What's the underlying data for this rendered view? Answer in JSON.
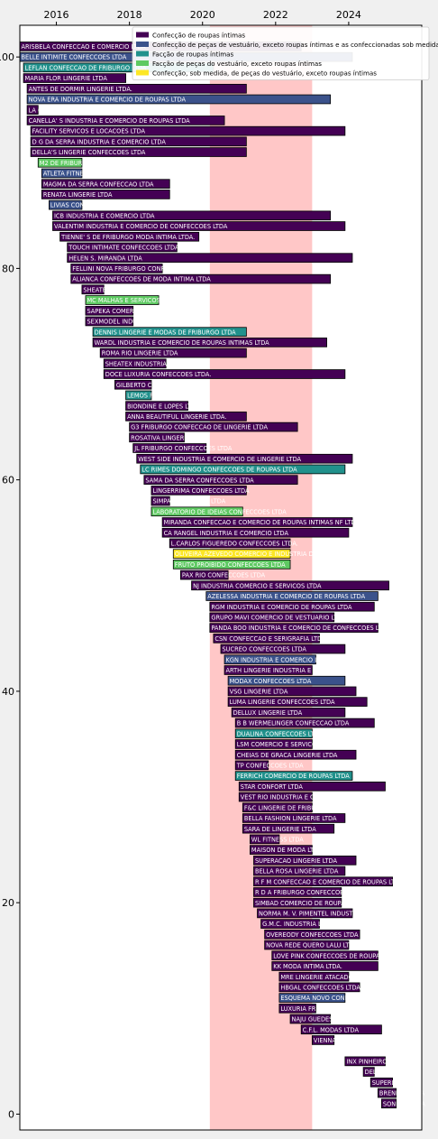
{
  "chart_data": {
    "type": "bar",
    "orientation": "horizontal",
    "xlim": [
      2015.0,
      2026.0
    ],
    "ylim": [
      -1.5,
      103.0
    ],
    "x_ticks": [
      2016,
      2018,
      2020,
      2022,
      2024
    ],
    "y_ticks": [
      0,
      20,
      40,
      60,
      80,
      100
    ],
    "x_tick_position": "top",
    "grid": false,
    "shaded_interval": {
      "start": 2020.2,
      "end": 2023.0,
      "color": "#ffbdbd"
    },
    "legend": {
      "placement": "top-right",
      "entries": [
        {
          "label": "Confecção de roupas íntimas",
          "color": "#440154"
        },
        {
          "label": "Confecção de peças de vestuário, exceto roupas íntimas e as confeccionadas sob medida",
          "color": "#3b528b"
        },
        {
          "label": "Facção de roupas íntimas",
          "color": "#21918c"
        },
        {
          "label": "Facção de peças do vestuário, exceto roupas íntimas",
          "color": "#5ec962"
        },
        {
          "label": "Confecção, sob medida, de peças do vestuário, exceto roupas íntimas",
          "color": "#fde725"
        }
      ]
    },
    "bars": [
      {
        "y": 101,
        "start": 2015.0,
        "end": 2022.7,
        "cat": 0,
        "name": "ARISBELA CONFECCAO E COMERCIO LTDA"
      },
      {
        "y": 100,
        "start": 2015.0,
        "end": 2024.1,
        "cat": 1,
        "name": "BELLE INTIMITE CONFECCOES LTDA"
      },
      {
        "y": 99,
        "start": 2015.1,
        "end": 2020.3,
        "cat": 2,
        "name": "LEFLAN CONFECCAO DE FRIBURGO LTDA"
      },
      {
        "y": 98,
        "start": 2015.1,
        "end": 2017.9,
        "cat": 0,
        "name": "MARIA FLOR LINGERIE LTDA"
      },
      {
        "y": 97,
        "start": 2015.2,
        "end": 2021.2,
        "cat": 0,
        "name": "ANTES DE DORMIR LINGERIE LTDA."
      },
      {
        "y": 96,
        "start": 2015.2,
        "end": 2023.5,
        "cat": 1,
        "name": "NOVA ERA INDUSTRIA E COMERCIO DE ROUPAS LTDA"
      },
      {
        "y": 95,
        "start": 2015.2,
        "end": 2015.5,
        "cat": 0,
        "name": "LA CORTE LTDA"
      },
      {
        "y": 94,
        "start": 2015.2,
        "end": 2020.6,
        "cat": 0,
        "name": "CANELLA' S INDUSTRIA E COMERCIO DE ROUPAS LTDA"
      },
      {
        "y": 93,
        "start": 2015.3,
        "end": 2023.9,
        "cat": 0,
        "name": "FACILITY SERVICOS E LOCACOES LTDA"
      },
      {
        "y": 92,
        "start": 2015.3,
        "end": 2021.2,
        "cat": 0,
        "name": "D G DA SERRA INDUSTRIA E COMERCIO LTDA"
      },
      {
        "y": 91,
        "start": 2015.3,
        "end": 2021.2,
        "cat": 0,
        "name": "DELLA'S LINGERIE CONFECCOES LTDA"
      },
      {
        "y": 90,
        "start": 2015.5,
        "end": 2016.7,
        "cat": 3,
        "name": "M2 DE FRIBURGO LTDA"
      },
      {
        "y": 89,
        "start": 2015.6,
        "end": 2016.7,
        "cat": 1,
        "name": "ATLETA FITNESS INDUSTRIA E COMERCIO LTDA"
      },
      {
        "y": 88,
        "start": 2015.6,
        "end": 2019.1,
        "cat": 0,
        "name": "MAGMA DA SERRA CONFECCAO LTDA"
      },
      {
        "y": 87,
        "start": 2015.6,
        "end": 2019.1,
        "cat": 0,
        "name": "RENATA LINGERIE LTDA"
      },
      {
        "y": 86,
        "start": 2015.8,
        "end": 2016.7,
        "cat": 1,
        "name": "LIVIAS CONFECCOES LTDA"
      },
      {
        "y": 85,
        "start": 2015.9,
        "end": 2023.5,
        "cat": 0,
        "name": "ICB INDUSTRIA E COMERCIO LTDA"
      },
      {
        "y": 84,
        "start": 2015.9,
        "end": 2023.9,
        "cat": 0,
        "name": "VALENTIM INDUSTRIA E COMERCIO DE CONFECCOES LTDA"
      },
      {
        "y": 83,
        "start": 2016.1,
        "end": 2019.9,
        "cat": 0,
        "name": "TIENNE' S DE FRIBURGO MODA INTIMA LTDA."
      },
      {
        "y": 82,
        "start": 2016.3,
        "end": 2019.3,
        "cat": 0,
        "name": "TOUCH INTIMATE CONFECCOES LTDA."
      },
      {
        "y": 81,
        "start": 2016.3,
        "end": 2024.1,
        "cat": 0,
        "name": "HELEN S. MIRANDA LTDA"
      },
      {
        "y": 80,
        "start": 2016.4,
        "end": 2018.9,
        "cat": 0,
        "name": "FELLINI NOVA FRIBURGO CONFECCOES LTDA"
      },
      {
        "y": 79,
        "start": 2016.4,
        "end": 2023.5,
        "cat": 0,
        "name": "ALIANCA CONFECCOES DE MODA INTIMA LTDA"
      },
      {
        "y": 78,
        "start": 2016.7,
        "end": 2017.3,
        "cat": 0,
        "name": "SHEATEX CONFECCOES LTDA"
      },
      {
        "y": 77,
        "start": 2016.8,
        "end": 2018.8,
        "cat": 3,
        "name": "MC MALHAS E SERVICOS LTDA"
      },
      {
        "y": 76,
        "start": 2016.8,
        "end": 2018.1,
        "cat": 0,
        "name": "SAPEKA COMERCIO LTDA"
      },
      {
        "y": 75,
        "start": 2016.8,
        "end": 2018.1,
        "cat": 0,
        "name": "SEXMODEL INDUSTRIA E COMERCIO LTDA"
      },
      {
        "y": 74,
        "start": 2017.0,
        "end": 2021.2,
        "cat": 2,
        "name": "DENNIS LINGERIE E MODAS DE FRIBURGO LTDA"
      },
      {
        "y": 73,
        "start": 2017.0,
        "end": 2023.4,
        "cat": 0,
        "name": "WARDL INDUSTRIA E COMERCIO DE ROUPAS INTIMAS LTDA"
      },
      {
        "y": 72,
        "start": 2017.2,
        "end": 2021.2,
        "cat": 0,
        "name": "ROMA RIO LINGERIE LTDA"
      },
      {
        "y": 71,
        "start": 2017.3,
        "end": 2019.0,
        "cat": 0,
        "name": "SHEATEX INDUSTRIA LTDA"
      },
      {
        "y": 70,
        "start": 2017.3,
        "end": 2023.9,
        "cat": 0,
        "name": "DOCE LUXURIA CONFECCOES LTDA."
      },
      {
        "y": 69,
        "start": 2017.6,
        "end": 2018.6,
        "cat": 0,
        "name": "GILBERTO CONFECCOES LTDA"
      },
      {
        "y": 68,
        "start": 2017.9,
        "end": 2018.6,
        "cat": 2,
        "name": "LEMOS FRIBURGO LTDA"
      },
      {
        "y": 67,
        "start": 2017.9,
        "end": 2019.6,
        "cat": 0,
        "name": "BIONDINE E LOPES LTDA"
      },
      {
        "y": 66,
        "start": 2017.9,
        "end": 2021.2,
        "cat": 0,
        "name": "ANNA BEAUTIFUL LINGERIE LTDA."
      },
      {
        "y": 65,
        "start": 2018.0,
        "end": 2022.6,
        "cat": 0,
        "name": "G3 FRIBURGO CONFECCAO DE LINGERIE LTDA"
      },
      {
        "y": 64,
        "start": 2018.0,
        "end": 2019.5,
        "cat": 0,
        "name": "ROSATIVA LINGERIE LTDA"
      },
      {
        "y": 63,
        "start": 2018.1,
        "end": 2020.1,
        "cat": 0,
        "name": "JL FRIBURGO CONFECCOES LTDA"
      },
      {
        "y": 62,
        "start": 2018.2,
        "end": 2024.1,
        "cat": 0,
        "name": "WEST SIDE INDUSTRIA E COMERCIO DE LINGERIE LTDA"
      },
      {
        "y": 61,
        "start": 2018.3,
        "end": 2023.9,
        "cat": 2,
        "name": "LC RIMES DOMINGO CONFECCOES DE ROUPAS LTDA"
      },
      {
        "y": 60,
        "start": 2018.4,
        "end": 2022.6,
        "cat": 0,
        "name": "SAMA DA SERRA CONFECCOES LTDA"
      },
      {
        "y": 59,
        "start": 2018.6,
        "end": 2021.2,
        "cat": 0,
        "name": "LINGERRIMA CONFECCOES LTDA"
      },
      {
        "y": 58,
        "start": 2018.6,
        "end": 2019.1,
        "cat": 0,
        "name": "SIMPATIA LINGERIE LTDA"
      },
      {
        "y": 57,
        "start": 2018.6,
        "end": 2021.1,
        "cat": 3,
        "name": "LABORATORIO DE IDEIAS CONFECCOES LTDA"
      },
      {
        "y": 56,
        "start": 2018.9,
        "end": 2024.1,
        "cat": 0,
        "name": "MIRANDA CONFECCAO E COMERCIO DE ROUPAS INTIMAS NF LTDA"
      },
      {
        "y": 55,
        "start": 2018.9,
        "end": 2024.0,
        "cat": 0,
        "name": "CA RANGEL INDUSTRIA E COMERCIO LTDA"
      },
      {
        "y": 54,
        "start": 2019.1,
        "end": 2022.4,
        "cat": 0,
        "name": "L.CARLOS FIGUEREDO CONFECCOES LTDA."
      },
      {
        "y": 53,
        "start": 2019.2,
        "end": 2022.4,
        "cat": 4,
        "name": "OLIVEIRA AZEVEDO COMERCIO E INDUSTRIA DE CONFECCOES LTDA"
      },
      {
        "y": 52,
        "start": 2019.2,
        "end": 2022.4,
        "cat": 3,
        "name": "FRUTO PROIBIDO CONFECCOES LTDA"
      },
      {
        "y": 51,
        "start": 2019.4,
        "end": 2020.7,
        "cat": 0,
        "name": "PAX RIO CONFECCOES LTDA"
      },
      {
        "y": 50,
        "start": 2019.7,
        "end": 2025.1,
        "cat": 0,
        "name": "NJ INDUSTRIA COMERCIO E SERVICOS LTDA"
      },
      {
        "y": 49,
        "start": 2020.1,
        "end": 2024.8,
        "cat": 1,
        "name": "AZELESSA INDUSTRIA E COMERCIO DE ROUPAS LTDA"
      },
      {
        "y": 48,
        "start": 2020.2,
        "end": 2024.7,
        "cat": 0,
        "name": "RGM INDUSTRIA E COMERCIO DE ROUPAS LTDA"
      },
      {
        "y": 47,
        "start": 2020.2,
        "end": 2023.6,
        "cat": 0,
        "name": "GRUPO MAVI COMERCIO DE VESTUARIO LTDA"
      },
      {
        "y": 46,
        "start": 2020.2,
        "end": 2024.8,
        "cat": 0,
        "name": "PANDA BOO INDUSTRIA E COMERCIO DE CONFECCOES LTDA"
      },
      {
        "y": 45,
        "start": 2020.3,
        "end": 2023.2,
        "cat": 0,
        "name": "CSN CONFECCAO E SERIGRAFIA LTDA"
      },
      {
        "y": 44,
        "start": 2020.5,
        "end": 2023.9,
        "cat": 0,
        "name": "SUCREO CONFECCOES LTDA"
      },
      {
        "y": 43,
        "start": 2020.6,
        "end": 2023.1,
        "cat": 1,
        "name": "KGN INDUSTRIA E COMERCIO LTDA"
      },
      {
        "y": 42,
        "start": 2020.6,
        "end": 2023.0,
        "cat": 0,
        "name": "ARTH LINGERIE INDUSTRIA E COMERCIO LTDA"
      },
      {
        "y": 41,
        "start": 2020.7,
        "end": 2023.9,
        "cat": 1,
        "name": "MODAX CONFECCOES LTDA"
      },
      {
        "y": 40,
        "start": 2020.7,
        "end": 2024.2,
        "cat": 0,
        "name": "VSG LINGERIE LTDA"
      },
      {
        "y": 39,
        "start": 2020.7,
        "end": 2024.5,
        "cat": 0,
        "name": "LUMA LINGERIE CONFECCOES LTDA"
      },
      {
        "y": 38,
        "start": 2020.8,
        "end": 2023.9,
        "cat": 0,
        "name": "DELLUX LINGERIE LTDA"
      },
      {
        "y": 37,
        "start": 2020.9,
        "end": 2024.7,
        "cat": 0,
        "name": "B B WERMELINGER CONFECCAO LTDA"
      },
      {
        "y": 36,
        "start": 2020.9,
        "end": 2023.0,
        "cat": 2,
        "name": "DUALINA CONFECCOES LTDA"
      },
      {
        "y": 35,
        "start": 2020.9,
        "end": 2023.0,
        "cat": 0,
        "name": "LSM COMERCIO E SERVICOS LTDA"
      },
      {
        "y": 34,
        "start": 2020.9,
        "end": 2024.2,
        "cat": 0,
        "name": "CHEIAS DE GRACA LINGERIE LTDA"
      },
      {
        "y": 33,
        "start": 2020.9,
        "end": 2021.8,
        "cat": 0,
        "name": "TP CONFECCOES LTDA"
      },
      {
        "y": 32,
        "start": 2020.9,
        "end": 2024.1,
        "cat": 2,
        "name": "FERRICH COMERCIO DE ROUPAS LTDA"
      },
      {
        "y": 31,
        "start": 2021.0,
        "end": 2025.0,
        "cat": 0,
        "name": "STAR CONFORT LTDA"
      },
      {
        "y": 30,
        "start": 2021.0,
        "end": 2023.0,
        "cat": 0,
        "name": "VEST RIO INDUSTRIA E COMERCIO LTDA"
      },
      {
        "y": 29,
        "start": 2021.1,
        "end": 2023.0,
        "cat": 0,
        "name": "F&C LINGERIE DE FRIBURGO LTDA"
      },
      {
        "y": 28,
        "start": 2021.1,
        "end": 2023.9,
        "cat": 0,
        "name": "BELLA FASHION LINGERIE LTDA"
      },
      {
        "y": 27,
        "start": 2021.1,
        "end": 2023.6,
        "cat": 0,
        "name": "SARA DE LINGERIE LTDA"
      },
      {
        "y": 26,
        "start": 2021.3,
        "end": 2022.1,
        "cat": 0,
        "name": "WL FITNESS LTDA"
      },
      {
        "y": 25,
        "start": 2021.3,
        "end": 2023.0,
        "cat": 0,
        "name": "MAISON DE MODA LTDA"
      },
      {
        "y": 24,
        "start": 2021.4,
        "end": 2024.2,
        "cat": 0,
        "name": "SUPERACAO LINGERIE LTDA"
      },
      {
        "y": 23,
        "start": 2021.4,
        "end": 2023.9,
        "cat": 0,
        "name": "BELLA ROSA LINGERIE LTDA"
      },
      {
        "y": 22,
        "start": 2021.4,
        "end": 2025.2,
        "cat": 0,
        "name": "R F M CONFECCAO E COMERCIO DE ROUPAS LTDA"
      },
      {
        "y": 21,
        "start": 2021.4,
        "end": 2023.8,
        "cat": 0,
        "name": "R D A FRIBURGO CONFECCOES LTDA"
      },
      {
        "y": 20,
        "start": 2021.4,
        "end": 2023.8,
        "cat": 0,
        "name": "SIMBAD COMERCIO DE ROUPAS LTDA"
      },
      {
        "y": 19,
        "start": 2021.5,
        "end": 2024.1,
        "cat": 0,
        "name": "NORMA M. V. PIMENTEL INDUSTRIA LTDA"
      },
      {
        "y": 18,
        "start": 2021.6,
        "end": 2023.2,
        "cat": 0,
        "name": "G.M.C. INDUSTRIA LTDA"
      },
      {
        "y": 17,
        "start": 2021.7,
        "end": 2024.3,
        "cat": 0,
        "name": "OVEREODY CONFECCOES LTDA"
      },
      {
        "y": 16,
        "start": 2021.7,
        "end": 2024.0,
        "cat": 0,
        "name": "NOVA REDE QUERO LALU LTDA"
      },
      {
        "y": 15,
        "start": 2021.9,
        "end": 2024.8,
        "cat": 0,
        "name": "LOVE PINK CONFECCOES DE ROUPAS LTDA"
      },
      {
        "y": 14,
        "start": 2021.9,
        "end": 2024.8,
        "cat": 0,
        "name": "KK MODA INTIMA LTDA."
      },
      {
        "y": 13,
        "start": 2022.1,
        "end": 2024.0,
        "cat": 0,
        "name": "MRE LINGERIE ATACADO LTDA"
      },
      {
        "y": 12,
        "start": 2022.1,
        "end": 2024.3,
        "cat": 0,
        "name": "HBGAL CONFECCOES LTDA"
      },
      {
        "y": 11,
        "start": 2022.1,
        "end": 2023.9,
        "cat": 1,
        "name": "ESQUEMA NOVO CONFECCOES LTDA"
      },
      {
        "y": 10,
        "start": 2022.1,
        "end": 2023.1,
        "cat": 0,
        "name": "LUXURIA FRIBURGO LTDA"
      },
      {
        "y": 9,
        "start": 2022.4,
        "end": 2023.5,
        "cat": 0,
        "name": "NAJU GUEDES LINGERIE LTDA"
      },
      {
        "y": 8,
        "start": 2022.7,
        "end": 2024.9,
        "cat": 0,
        "name": "C.F.L. MODAS LTDA"
      },
      {
        "y": 7,
        "start": 2023.0,
        "end": 2023.6,
        "cat": 0,
        "name": "VIENNA LINGERIE LTDA"
      },
      {
        "y": 5,
        "start": 2023.9,
        "end": 2025.0,
        "cat": 0,
        "name": "INX PINHEIRO LTDA"
      },
      {
        "y": 4,
        "start": 2024.4,
        "end": 2024.7,
        "cat": 0,
        "name": "DELUXE LTDA"
      },
      {
        "y": 3,
        "start": 2024.6,
        "end": 2025.2,
        "cat": 0,
        "name": "SUPERLINE LTDA"
      },
      {
        "y": 2,
        "start": 2024.8,
        "end": 2025.3,
        "cat": 0,
        "name": "BRENNER LTDA"
      },
      {
        "y": 1,
        "start": 2024.9,
        "end": 2025.3,
        "cat": 0,
        "name": "SONHOS LTDA"
      }
    ]
  }
}
